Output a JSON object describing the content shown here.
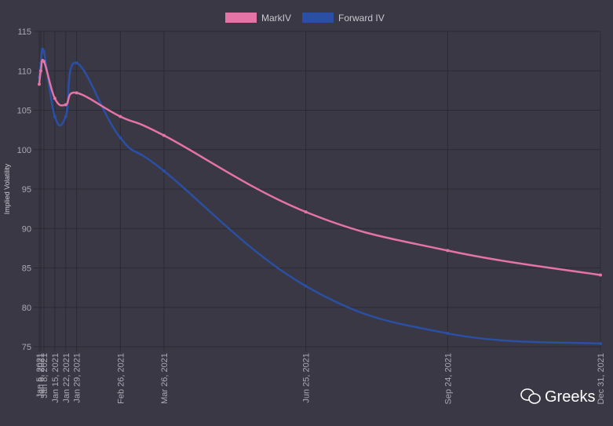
{
  "chart_data": {
    "type": "line",
    "y_label": "Implied Volatility",
    "watermark": "Greeks",
    "x": [
      "Jan 5, 2021",
      "Jan 6, 2021",
      "Jan 8, 2021",
      "Jan 15, 2021",
      "Jan 22, 2021",
      "Jan 29, 2021",
      "Feb 26, 2021",
      "Mar 26, 2021",
      "Jun 25, 2021",
      "Sep 24, 2021",
      "Dec 31, 2021"
    ],
    "series": [
      {
        "name": "MarkIV",
        "color": "#e473a6",
        "values": [
          108.3,
          110.0,
          111.2,
          106.5,
          105.7,
          107.2,
          104.2,
          101.8,
          92.1,
          87.2,
          84.1
        ]
      },
      {
        "name": "Forward IV",
        "color": "#2a4fa3",
        "values": [
          109.2,
          111.0,
          112.4,
          104.2,
          104.2,
          111.0,
          101.5,
          97.3,
          82.7,
          76.7,
          75.4
        ]
      }
    ],
    "ylim": [
      75,
      115
    ],
    "yticks": [
      75,
      80,
      85,
      90,
      95,
      100,
      105,
      110,
      115
    ],
    "grid": true,
    "legend": "top"
  }
}
